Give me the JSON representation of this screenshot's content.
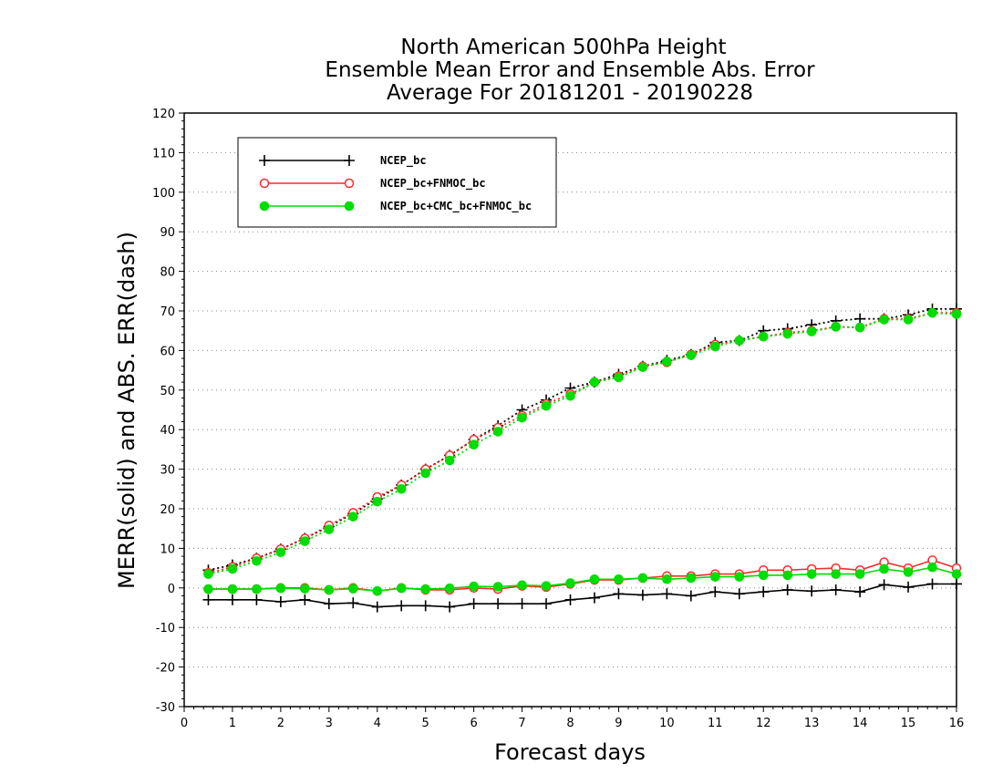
{
  "chart_data": {
    "type": "line",
    "title": [
      "North American 500hPa Height",
      "Ensemble Mean Error and Ensemble Abs. Error",
      "Average For 20181201 - 20190228"
    ],
    "xlabel": "Forecast days",
    "ylabel": "MERR(solid) and ABS. ERR(dash)",
    "xlim": [
      0,
      16
    ],
    "ylim": [
      -30,
      120
    ],
    "xticks": [
      0,
      1,
      2,
      3,
      4,
      5,
      6,
      7,
      8,
      9,
      10,
      11,
      12,
      13,
      14,
      15,
      16
    ],
    "yticks": [
      -30,
      -20,
      -10,
      0,
      10,
      20,
      30,
      40,
      50,
      60,
      70,
      80,
      90,
      100,
      110,
      120
    ],
    "grid": "horizontal dotted",
    "legend_position": "top-left",
    "x": [
      0.5,
      1,
      1.5,
      2,
      2.5,
      3,
      3.5,
      4,
      4.5,
      5,
      5.5,
      6,
      6.5,
      7,
      7.5,
      8,
      8.5,
      9,
      9.5,
      10,
      10.5,
      11,
      11.5,
      12,
      12.5,
      13,
      13.5,
      14,
      14.5,
      15,
      15.5,
      16
    ],
    "series": [
      {
        "name": "NCEP_bc",
        "color": "#000000",
        "marker": "plus",
        "merr": [
          -3,
          -3,
          -3,
          -3.5,
          -3,
          -4,
          -3.8,
          -4.8,
          -4.5,
          -4.5,
          -4.8,
          -4,
          -4,
          -4,
          -4,
          -3,
          -2.5,
          -1.5,
          -1.8,
          -1.5,
          -2,
          -1,
          -1.5,
          -1,
          -0.5,
          -0.8,
          -0.5,
          -1,
          0.8,
          0.2,
          1,
          1
        ],
        "abs_err": [
          4.5,
          5.8,
          7.5,
          9.8,
          12.5,
          15.5,
          18.8,
          22.5,
          26,
          30,
          33.5,
          37.5,
          41,
          45,
          47.5,
          50.5,
          52,
          54,
          56,
          57.5,
          59,
          62,
          62.5,
          65,
          65.5,
          66.5,
          67.5,
          68,
          68,
          69,
          70.5,
          70.5
        ]
      },
      {
        "name": "NCEP_bc+FNMOC_bc",
        "color": "#ff2a2a",
        "marker": "open-circle",
        "merr": [
          -0.3,
          -0.3,
          -0.3,
          0,
          0,
          -0.5,
          0,
          -0.8,
          0,
          -0.5,
          -0.5,
          0,
          -0.3,
          0.5,
          0.2,
          1,
          2,
          2,
          2.5,
          3,
          3,
          3.5,
          3.5,
          4.5,
          4.5,
          4.8,
          5,
          4.5,
          6.5,
          5,
          7,
          5
        ],
        "abs_err": [
          3.8,
          5.3,
          7.5,
          9.8,
          12.5,
          15.8,
          19,
          23,
          26,
          30,
          33.5,
          37.5,
          40.5,
          43.5,
          46.5,
          49,
          52,
          53.5,
          56,
          57,
          59,
          61.5,
          62.5,
          63.5,
          64.5,
          65,
          66,
          65.8,
          68,
          68,
          69.5,
          69.5
        ]
      },
      {
        "name": "NCEP_bc+CMC_bc+FNMOC_bc",
        "color": "#00dd00",
        "marker": "filled-circle",
        "merr": [
          -0.3,
          -0.3,
          -0.3,
          -0.1,
          -0.2,
          -0.5,
          -0.2,
          -0.8,
          -0.1,
          -0.3,
          -0.1,
          0.4,
          0.3,
          0.7,
          0.5,
          1.2,
          2.2,
          2.2,
          2.5,
          2.2,
          2.5,
          2.8,
          2.8,
          3.2,
          3.2,
          3.5,
          3.5,
          3.5,
          4.8,
          4,
          5.2,
          3.5
        ],
        "abs_err": [
          3.5,
          4.8,
          6.8,
          9,
          11.8,
          14.8,
          18,
          21.8,
          25,
          29,
          32.2,
          36.2,
          39.5,
          43,
          46,
          48.5,
          52,
          53.2,
          55.8,
          57.2,
          58.8,
          61,
          62.5,
          63.5,
          64.2,
          64.8,
          66,
          65.8,
          67.8,
          67.8,
          69.5,
          69.2
        ]
      }
    ]
  }
}
